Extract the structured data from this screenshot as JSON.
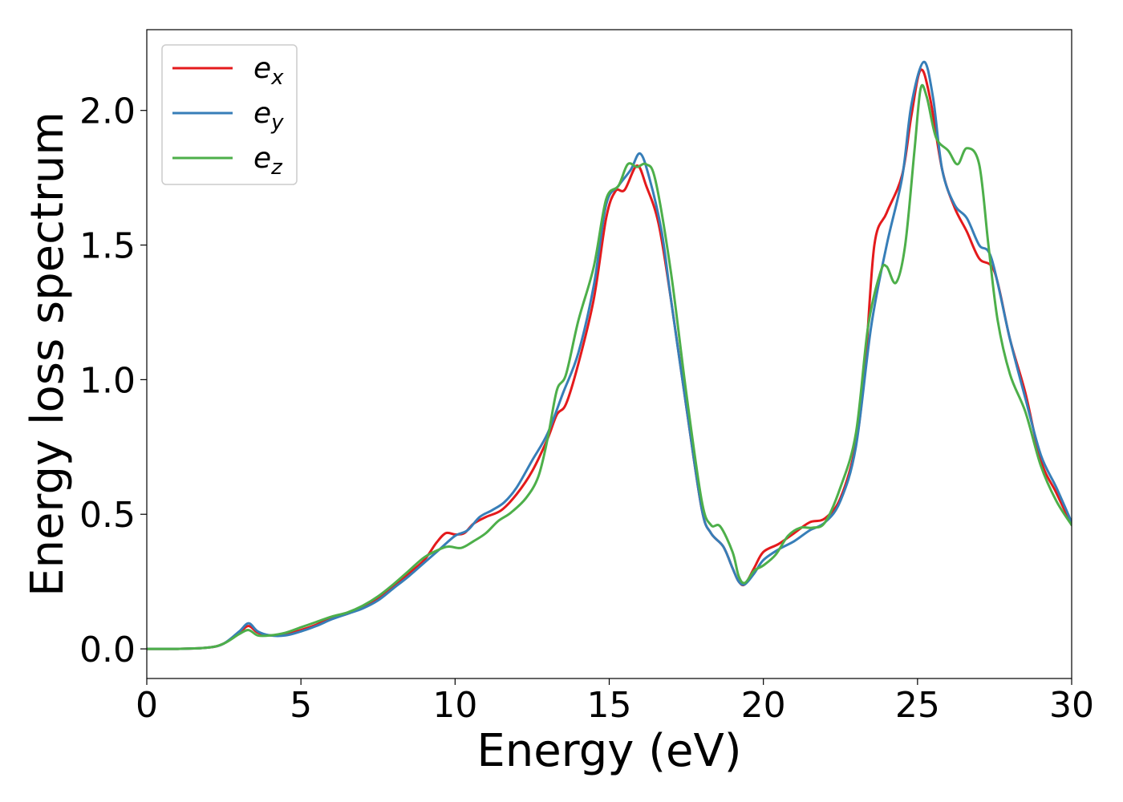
{
  "chart_data": {
    "type": "line",
    "title": "",
    "xlabel": "Energy (eV)",
    "ylabel": "Energy loss spectrum",
    "xlim": [
      0,
      30
    ],
    "ylim": [
      -0.11,
      2.3
    ],
    "xticks": [
      0,
      5,
      10,
      15,
      20,
      25,
      30
    ],
    "xtick_labels": [
      "0",
      "5",
      "10",
      "15",
      "20",
      "25",
      "30"
    ],
    "yticks": [
      0.0,
      0.5,
      1.0,
      1.5,
      2.0
    ],
    "ytick_labels": [
      "0.0",
      "0.5",
      "1.0",
      "1.5",
      "2.0"
    ],
    "grid": false,
    "legend_position": "top-left",
    "series": [
      {
        "name": "e_x",
        "legend_base": "e",
        "legend_sub": "x",
        "color": "#e41a1c",
        "points": [
          [
            0,
            0
          ],
          [
            1,
            0
          ],
          [
            2,
            0.005
          ],
          [
            2.5,
            0.02
          ],
          [
            3,
            0.06
          ],
          [
            3.3,
            0.085
          ],
          [
            3.6,
            0.06
          ],
          [
            4,
            0.05
          ],
          [
            4.5,
            0.055
          ],
          [
            5,
            0.07
          ],
          [
            5.5,
            0.09
          ],
          [
            6,
            0.115
          ],
          [
            6.5,
            0.13
          ],
          [
            7,
            0.155
          ],
          [
            7.5,
            0.185
          ],
          [
            8,
            0.23
          ],
          [
            8.5,
            0.28
          ],
          [
            9,
            0.33
          ],
          [
            9.4,
            0.395
          ],
          [
            9.7,
            0.43
          ],
          [
            10,
            0.425
          ],
          [
            10.3,
            0.43
          ],
          [
            10.6,
            0.465
          ],
          [
            11,
            0.49
          ],
          [
            11.5,
            0.515
          ],
          [
            12,
            0.575
          ],
          [
            12.5,
            0.66
          ],
          [
            13,
            0.78
          ],
          [
            13.3,
            0.87
          ],
          [
            13.6,
            0.91
          ],
          [
            14,
            1.06
          ],
          [
            14.5,
            1.3
          ],
          [
            14.9,
            1.6
          ],
          [
            15.2,
            1.7
          ],
          [
            15.5,
            1.705
          ],
          [
            15.9,
            1.795
          ],
          [
            16.2,
            1.72
          ],
          [
            16.6,
            1.58
          ],
          [
            17,
            1.3
          ],
          [
            17.5,
            0.9
          ],
          [
            18,
            0.52
          ],
          [
            18.3,
            0.43
          ],
          [
            18.7,
            0.38
          ],
          [
            19,
            0.3
          ],
          [
            19.2,
            0.25
          ],
          [
            19.4,
            0.24
          ],
          [
            19.7,
            0.3
          ],
          [
            20,
            0.36
          ],
          [
            20.5,
            0.39
          ],
          [
            21,
            0.43
          ],
          [
            21.5,
            0.47
          ],
          [
            22,
            0.485
          ],
          [
            22.5,
            0.56
          ],
          [
            23,
            0.76
          ],
          [
            23.3,
            1.05
          ],
          [
            23.6,
            1.5
          ],
          [
            24,
            1.62
          ],
          [
            24.5,
            1.76
          ],
          [
            24.8,
            1.98
          ],
          [
            25.1,
            2.15
          ],
          [
            25.4,
            2.05
          ],
          [
            25.8,
            1.78
          ],
          [
            26.2,
            1.64
          ],
          [
            26.6,
            1.55
          ],
          [
            27,
            1.45
          ],
          [
            27.5,
            1.4
          ],
          [
            28,
            1.15
          ],
          [
            28.5,
            0.95
          ],
          [
            29,
            0.7
          ],
          [
            29.5,
            0.58
          ],
          [
            30,
            0.46
          ]
        ]
      },
      {
        "name": "e_y",
        "legend_base": "e",
        "legend_sub": "y",
        "color": "#377eb8",
        "points": [
          [
            0,
            0
          ],
          [
            1,
            0
          ],
          [
            2,
            0.005
          ],
          [
            2.5,
            0.02
          ],
          [
            3,
            0.065
          ],
          [
            3.3,
            0.095
          ],
          [
            3.6,
            0.065
          ],
          [
            4,
            0.05
          ],
          [
            4.5,
            0.05
          ],
          [
            5,
            0.065
          ],
          [
            5.5,
            0.085
          ],
          [
            6,
            0.11
          ],
          [
            6.5,
            0.13
          ],
          [
            7,
            0.15
          ],
          [
            7.5,
            0.18
          ],
          [
            8,
            0.225
          ],
          [
            8.5,
            0.27
          ],
          [
            9,
            0.32
          ],
          [
            9.5,
            0.37
          ],
          [
            10,
            0.42
          ],
          [
            10.4,
            0.44
          ],
          [
            10.8,
            0.49
          ],
          [
            11.2,
            0.515
          ],
          [
            11.6,
            0.545
          ],
          [
            12,
            0.6
          ],
          [
            12.5,
            0.7
          ],
          [
            13,
            0.8
          ],
          [
            13.5,
            0.95
          ],
          [
            14,
            1.1
          ],
          [
            14.5,
            1.35
          ],
          [
            14.9,
            1.65
          ],
          [
            15.3,
            1.72
          ],
          [
            15.7,
            1.78
          ],
          [
            16,
            1.84
          ],
          [
            16.3,
            1.75
          ],
          [
            16.7,
            1.55
          ],
          [
            17,
            1.3
          ],
          [
            17.5,
            0.9
          ],
          [
            18,
            0.52
          ],
          [
            18.3,
            0.43
          ],
          [
            18.7,
            0.38
          ],
          [
            19,
            0.3
          ],
          [
            19.2,
            0.25
          ],
          [
            19.4,
            0.24
          ],
          [
            19.7,
            0.28
          ],
          [
            20,
            0.33
          ],
          [
            20.5,
            0.37
          ],
          [
            21,
            0.4
          ],
          [
            21.5,
            0.44
          ],
          [
            22,
            0.47
          ],
          [
            22.5,
            0.55
          ],
          [
            23,
            0.75
          ],
          [
            23.5,
            1.2
          ],
          [
            24,
            1.5
          ],
          [
            24.5,
            1.75
          ],
          [
            24.8,
            2.02
          ],
          [
            25.2,
            2.18
          ],
          [
            25.5,
            2.05
          ],
          [
            25.8,
            1.78
          ],
          [
            26.2,
            1.65
          ],
          [
            26.6,
            1.6
          ],
          [
            27,
            1.5
          ],
          [
            27.4,
            1.45
          ],
          [
            28,
            1.15
          ],
          [
            28.5,
            0.93
          ],
          [
            29,
            0.72
          ],
          [
            29.5,
            0.6
          ],
          [
            30,
            0.47
          ]
        ]
      },
      {
        "name": "e_z",
        "legend_base": "e",
        "legend_sub": "z",
        "color": "#4daf4a",
        "points": [
          [
            0,
            0
          ],
          [
            1,
            0
          ],
          [
            2,
            0.005
          ],
          [
            2.5,
            0.02
          ],
          [
            3,
            0.055
          ],
          [
            3.3,
            0.07
          ],
          [
            3.6,
            0.05
          ],
          [
            4,
            0.05
          ],
          [
            4.5,
            0.06
          ],
          [
            5,
            0.08
          ],
          [
            5.5,
            0.1
          ],
          [
            6,
            0.12
          ],
          [
            6.5,
            0.135
          ],
          [
            7,
            0.16
          ],
          [
            7.5,
            0.195
          ],
          [
            8,
            0.24
          ],
          [
            8.5,
            0.29
          ],
          [
            9,
            0.34
          ],
          [
            9.5,
            0.37
          ],
          [
            9.8,
            0.38
          ],
          [
            10.2,
            0.375
          ],
          [
            10.6,
            0.4
          ],
          [
            11,
            0.43
          ],
          [
            11.4,
            0.475
          ],
          [
            11.8,
            0.505
          ],
          [
            12.3,
            0.56
          ],
          [
            12.7,
            0.64
          ],
          [
            13,
            0.78
          ],
          [
            13.3,
            0.96
          ],
          [
            13.6,
            1.02
          ],
          [
            14,
            1.22
          ],
          [
            14.5,
            1.42
          ],
          [
            14.9,
            1.67
          ],
          [
            15.3,
            1.72
          ],
          [
            15.6,
            1.8
          ],
          [
            15.9,
            1.79
          ],
          [
            16.2,
            1.8
          ],
          [
            16.5,
            1.74
          ],
          [
            17,
            1.4
          ],
          [
            17.5,
            0.95
          ],
          [
            18,
            0.55
          ],
          [
            18.3,
            0.46
          ],
          [
            18.6,
            0.455
          ],
          [
            19,
            0.36
          ],
          [
            19.2,
            0.27
          ],
          [
            19.4,
            0.245
          ],
          [
            19.7,
            0.29
          ],
          [
            20,
            0.31
          ],
          [
            20.4,
            0.35
          ],
          [
            20.8,
            0.42
          ],
          [
            21.2,
            0.45
          ],
          [
            21.6,
            0.45
          ],
          [
            22,
            0.47
          ],
          [
            22.5,
            0.6
          ],
          [
            23,
            0.8
          ],
          [
            23.4,
            1.2
          ],
          [
            23.8,
            1.4
          ],
          [
            24,
            1.42
          ],
          [
            24.3,
            1.36
          ],
          [
            24.6,
            1.5
          ],
          [
            24.9,
            1.85
          ],
          [
            25.1,
            2.08
          ],
          [
            25.3,
            2.05
          ],
          [
            25.6,
            1.9
          ],
          [
            26,
            1.85
          ],
          [
            26.3,
            1.8
          ],
          [
            26.6,
            1.86
          ],
          [
            27,
            1.8
          ],
          [
            27.3,
            1.5
          ],
          [
            27.6,
            1.22
          ],
          [
            28,
            1.02
          ],
          [
            28.5,
            0.88
          ],
          [
            29,
            0.68
          ],
          [
            29.5,
            0.55
          ],
          [
            30,
            0.46
          ]
        ]
      }
    ]
  }
}
